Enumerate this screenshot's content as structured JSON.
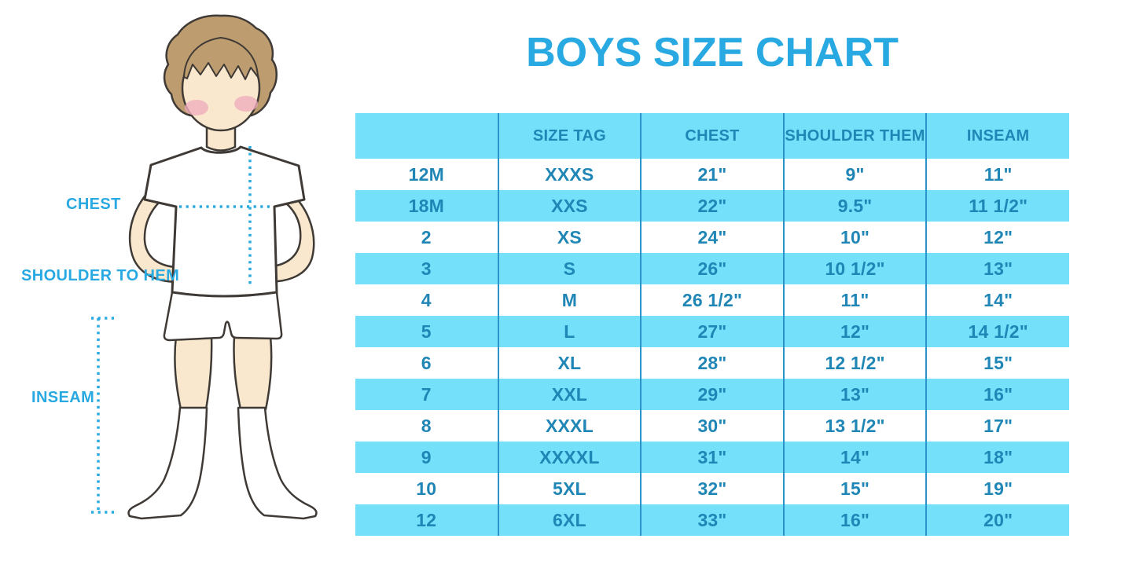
{
  "title": "BOYS SIZE CHART",
  "figure": {
    "chest_label": "CHEST",
    "shoulder_label": "SHOULDER TO HEM",
    "inseam_label": "INSEAM"
  },
  "colors": {
    "accent_blue": "#29A9E1",
    "band_blue": "#74E0FA",
    "table_text_blue": "#1F86B6",
    "divider_blue": "#2A93C9",
    "dotted_line_blue": "#29ABE2",
    "skin": "#F9E8CD",
    "hair": "#BD9C6F",
    "blush": "#F0AEBE"
  },
  "chart_data": {
    "type": "table",
    "title": "BOYS SIZE CHART",
    "headers": [
      "",
      "SIZE TAG",
      "CHEST",
      "SHOULDER THEM",
      "INSEAM"
    ],
    "rows": [
      [
        "12M",
        "XXXS",
        "21\"",
        "9\"",
        "11\""
      ],
      [
        "18M",
        "XXS",
        "22\"",
        "9.5\"",
        "11 1/2\""
      ],
      [
        "2",
        "XS",
        "24\"",
        "10\"",
        "12\""
      ],
      [
        "3",
        "S",
        "26\"",
        "10 1/2\"",
        "13\""
      ],
      [
        "4",
        "M",
        "26 1/2\"",
        "11\"",
        "14\""
      ],
      [
        "5",
        "L",
        "27\"",
        "12\"",
        "14 1/2\""
      ],
      [
        "6",
        "XL",
        "28\"",
        "12 1/2\"",
        "15\""
      ],
      [
        "7",
        "XXL",
        "29\"",
        "13\"",
        "16\""
      ],
      [
        "8",
        "XXXL",
        "30\"",
        "13 1/2\"",
        "17\""
      ],
      [
        "9",
        "XXXXL",
        "31\"",
        "14\"",
        "18\""
      ],
      [
        "10",
        "5XL",
        "32\"",
        "15\"",
        "19\""
      ],
      [
        "12",
        "6XL",
        "33\"",
        "16\"",
        "20\""
      ]
    ]
  }
}
